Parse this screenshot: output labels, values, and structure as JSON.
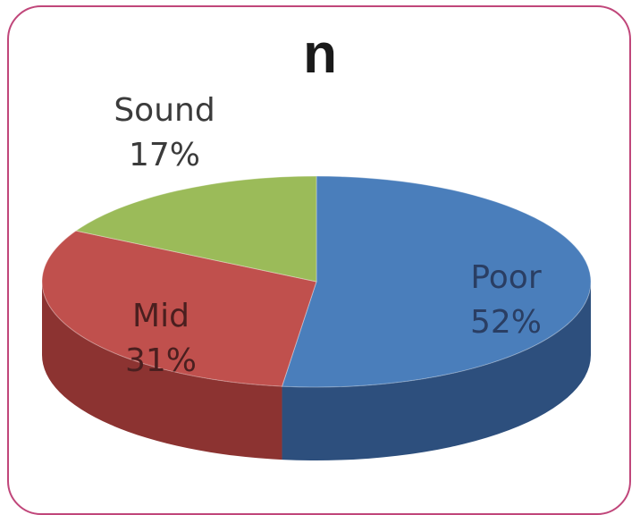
{
  "chart_data": {
    "type": "pie",
    "title": "n",
    "categories": [
      "Poor",
      "Mid",
      "Sound"
    ],
    "values": [
      52,
      31,
      17
    ],
    "value_labels": [
      "52%",
      "31%",
      "17%"
    ],
    "colors": {
      "Poor": "#4a7ebb",
      "Mid": "#c0504d",
      "Sound": "#9bbb59"
    },
    "side_colors": {
      "Poor": "#2d4f7d",
      "Mid": "#8c3331",
      "Sound": "#6b8a3b"
    },
    "label_colors": {
      "Poor": "#2a3e63",
      "Mid": "#4a1f1f",
      "Sound": "#3b3b3b"
    },
    "start_at": "12 o'clock",
    "direction": "clockwise",
    "three_d": true
  }
}
